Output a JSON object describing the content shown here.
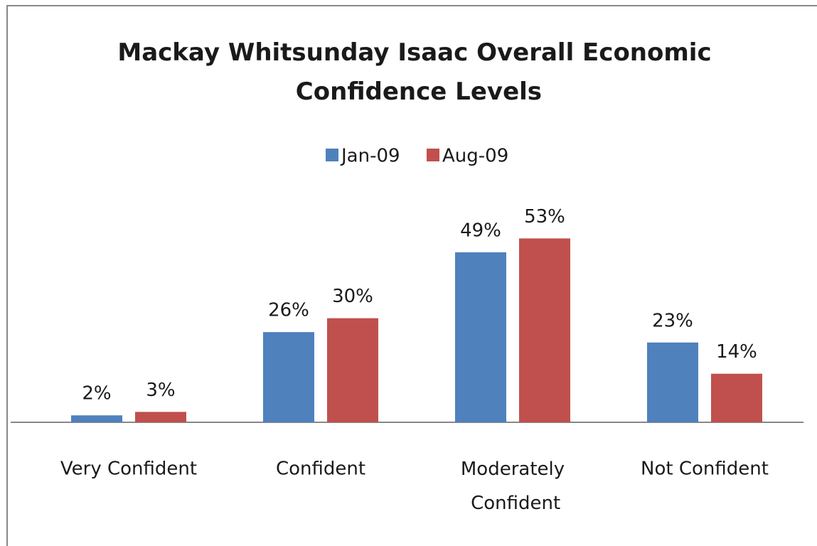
{
  "chart_data": {
    "type": "bar",
    "title": "Mackay Whitsunday Isaac Overall Economic Confidence Levels",
    "categories": [
      "Very Confident",
      "Confident",
      "Moderately Confident",
      "Not Confident"
    ],
    "series": [
      {
        "name": "Jan-09",
        "color": "#4f81bd",
        "values": [
          2,
          26,
          49,
          23
        ],
        "value_labels": [
          "2%",
          "26%",
          "49%",
          "23%"
        ]
      },
      {
        "name": "Aug-09",
        "color": "#c0504d",
        "values": [
          3,
          30,
          53,
          14
        ],
        "value_labels": [
          "3%",
          "30%",
          "53%",
          "14%"
        ]
      }
    ],
    "legend": "top"
  }
}
